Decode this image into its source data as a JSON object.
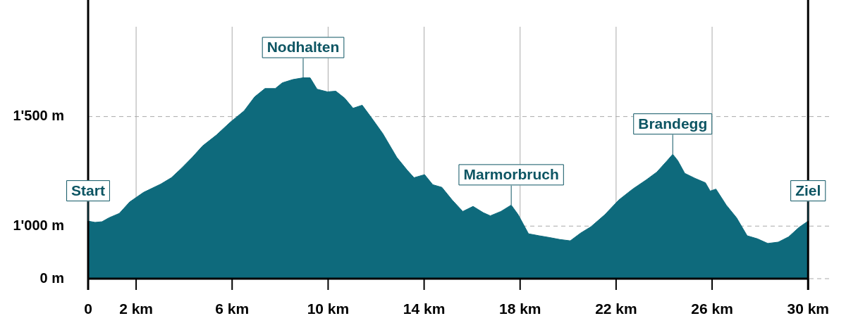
{
  "chart_data": {
    "type": "area",
    "x": [
      0,
      0.29,
      0.58,
      0.87,
      1.3,
      1.73,
      2.31,
      3.03,
      3.47,
      3.9,
      4.34,
      4.77,
      5.35,
      5.92,
      6.5,
      6.94,
      7.37,
      7.8,
      8.09,
      8.53,
      8.96,
      9.25,
      9.54,
      9.97,
      10.32,
      10.69,
      11.04,
      11.42,
      11.85,
      12.28,
      12.86,
      13.29,
      13.58,
      14.02,
      14.36,
      14.74,
      15.17,
      15.61,
      16.04,
      16.47,
      16.76,
      17.2,
      17.63,
      17.92,
      18.35,
      18.79,
      19.22,
      19.65,
      20.09,
      20.52,
      20.95,
      21.53,
      22.11,
      22.69,
      23.27,
      23.7,
      24.13,
      24.36,
      24.57,
      24.86,
      25.29,
      25.72,
      25.92,
      26.16,
      26.59,
      27.02,
      27.46,
      27.89,
      28.32,
      28.76,
      29.19,
      29.62,
      30
    ],
    "series": [
      {
        "color": "#0e6a7c",
        "values": [
          1023,
          1017,
          1020,
          1038,
          1058,
          1110,
          1154,
          1192,
          1221,
          1265,
          1314,
          1366,
          1416,
          1474,
          1526,
          1590,
          1628,
          1628,
          1654,
          1669,
          1677,
          1677,
          1625,
          1613,
          1616,
          1584,
          1538,
          1552,
          1488,
          1422,
          1314,
          1256,
          1221,
          1235,
          1189,
          1177,
          1119,
          1067,
          1090,
          1061,
          1047,
          1067,
          1096,
          1052,
          965,
          956,
          948,
          939,
          933,
          968,
          997,
          1052,
          1119,
          1169,
          1212,
          1247,
          1299,
          1328,
          1299,
          1241,
          1218,
          1198,
          1160,
          1169,
          1096,
          1038,
          956,
          942,
          921,
          927,
          951,
          994,
          1023
        ]
      }
    ],
    "xlim": [
      0,
      30
    ],
    "xticks": [
      {
        "value": 0,
        "label": "0"
      },
      {
        "value": 2,
        "label": "2 km"
      },
      {
        "value": 6,
        "label": "6 km"
      },
      {
        "value": 10,
        "label": "10 km"
      },
      {
        "value": 14,
        "label": "14 km"
      },
      {
        "value": 18,
        "label": "18 km"
      },
      {
        "value": 22,
        "label": "22 km"
      },
      {
        "value": 26,
        "label": "26 km"
      },
      {
        "value": 30,
        "label": "30 km"
      }
    ],
    "ylim": [
      760,
      1910
    ],
    "yticks": [
      {
        "value": 760,
        "label": "0 m"
      },
      {
        "value": 1000,
        "label": "1'000 m"
      },
      {
        "value": 1500,
        "label": "1'500 m"
      }
    ],
    "grid": true,
    "annotations": [
      {
        "text": "Start",
        "x": 0,
        "y": 1023
      },
      {
        "text": "Nodhalten",
        "x": 8.96,
        "y": 1677
      },
      {
        "text": "Marmorbruch",
        "x": 17.63,
        "y": 1096
      },
      {
        "text": "Brandegg",
        "x": 24.36,
        "y": 1328
      },
      {
        "text": "Ziel",
        "x": 30,
        "y": 1023
      }
    ]
  }
}
